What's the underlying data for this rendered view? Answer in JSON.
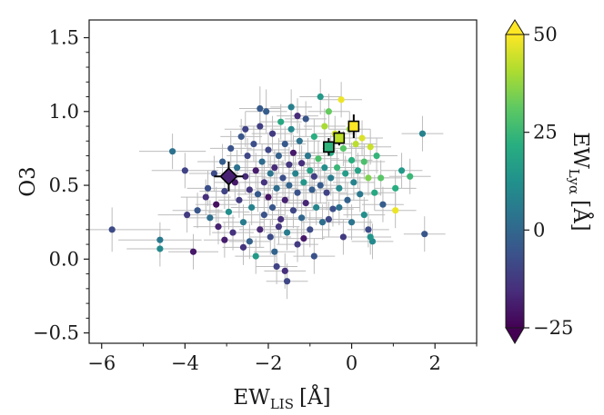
{
  "chart_data": {
    "type": "scatter",
    "xlabel": "EW",
    "xlabel_sub": "LIS",
    "xlabel_unit": "[Å]",
    "ylabel": "O3",
    "xlim": [
      -6.3,
      3.0
    ],
    "ylim": [
      -0.57,
      1.62
    ],
    "xticks": [
      -6,
      -4,
      -2,
      0,
      2
    ],
    "xtick_labels": [
      "−6",
      "−4",
      "−2",
      "0",
      "2"
    ],
    "yticks": [
      -0.5,
      0.0,
      0.5,
      1.0,
      1.5
    ],
    "ytick_labels": [
      "−0.5",
      "0.0",
      "0.5",
      "1.0",
      "1.5"
    ],
    "colorbar": {
      "label": "EW",
      "label_sub": "Lyα",
      "label_unit": "[Å]",
      "range": [
        -25,
        50
      ],
      "ticks": [
        -25,
        0,
        25,
        50
      ],
      "tick_labels": [
        "−25",
        "0",
        "25",
        "50"
      ],
      "colormap": "viridis",
      "extend": "both"
    },
    "error_bar_color": "#bdbdbd",
    "highlight_points": [
      {
        "marker": "diamond",
        "x": -2.95,
        "y": 0.56,
        "xerr": 0.35,
        "yerr": 0.1,
        "color": "#482173"
      },
      {
        "marker": "square",
        "x": -0.55,
        "y": 0.76,
        "xerr": 0.1,
        "yerr": 0.06,
        "color": "#2fb47c"
      },
      {
        "marker": "square",
        "x": -0.3,
        "y": 0.82,
        "xerr": 0.08,
        "yerr": 0.05,
        "color": "#bddf26"
      },
      {
        "marker": "square",
        "x": 0.05,
        "y": 0.9,
        "xerr": 0.08,
        "yerr": 0.08,
        "color": "#fde725"
      }
    ],
    "points": [
      {
        "x": -5.75,
        "y": 0.2,
        "c": -8,
        "xerr": 1.4,
        "yerr": 0.15
      },
      {
        "x": -4.6,
        "y": 0.13,
        "c": 5,
        "xerr": 1.0,
        "yerr": 0.12
      },
      {
        "x": -4.6,
        "y": 0.07,
        "c": 10,
        "xerr": 0.8,
        "yerr": 0.12
      },
      {
        "x": -4.3,
        "y": 0.73,
        "c": 3,
        "xerr": 0.8,
        "yerr": 0.12
      },
      {
        "x": -4.0,
        "y": 0.6,
        "c": -10,
        "xerr": 0.8,
        "yerr": 0.12
      },
      {
        "x": -3.95,
        "y": 0.3,
        "c": -12,
        "xerr": 0.7,
        "yerr": 0.12
      },
      {
        "x": -3.8,
        "y": 0.05,
        "c": -20,
        "xerr": 0.6,
        "yerr": 0.12
      },
      {
        "x": -3.7,
        "y": 0.33,
        "c": -5,
        "xerr": 0.6,
        "yerr": 0.12
      },
      {
        "x": -3.5,
        "y": 0.42,
        "c": -15,
        "xerr": 0.6,
        "yerr": 0.12
      },
      {
        "x": -3.4,
        "y": 0.28,
        "c": 2,
        "xerr": 0.6,
        "yerr": 0.12
      },
      {
        "x": -3.3,
        "y": 0.58,
        "c": -8,
        "xerr": 0.6,
        "yerr": 0.12
      },
      {
        "x": -3.2,
        "y": 0.22,
        "c": -18,
        "xerr": 0.6,
        "yerr": 0.12
      },
      {
        "x": -3.1,
        "y": 0.66,
        "c": -3,
        "xerr": 0.6,
        "yerr": 0.12
      },
      {
        "x": -3.05,
        "y": 0.46,
        "c": -10,
        "xerr": 0.6,
        "yerr": 0.12
      },
      {
        "x": -2.95,
        "y": 0.32,
        "c": 12,
        "xerr": 0.5,
        "yerr": 0.12
      },
      {
        "x": -2.9,
        "y": 0.75,
        "c": -6,
        "xerr": 0.5,
        "yerr": 0.12
      },
      {
        "x": -2.85,
        "y": 0.18,
        "c": -14,
        "xerr": 0.5,
        "yerr": 0.12
      },
      {
        "x": -2.8,
        "y": 0.52,
        "c": -20,
        "xerr": 0.5,
        "yerr": 0.12
      },
      {
        "x": -2.75,
        "y": 0.62,
        "c": 3,
        "xerr": 0.5,
        "yerr": 0.12
      },
      {
        "x": -2.7,
        "y": 0.4,
        "c": -12,
        "xerr": 0.5,
        "yerr": 0.12
      },
      {
        "x": -2.65,
        "y": 0.83,
        "c": -5,
        "xerr": 0.5,
        "yerr": 0.12
      },
      {
        "x": -2.6,
        "y": 0.25,
        "c": 6,
        "xerr": 0.5,
        "yerr": 0.12
      },
      {
        "x": -2.55,
        "y": 0.56,
        "c": -16,
        "xerr": 0.5,
        "yerr": 0.12
      },
      {
        "x": -2.5,
        "y": 0.7,
        "c": -9,
        "xerr": 0.5,
        "yerr": 0.12
      },
      {
        "x": -2.45,
        "y": 0.12,
        "c": -2,
        "xerr": 0.5,
        "yerr": 0.12
      },
      {
        "x": -2.45,
        "y": 0.47,
        "c": -13,
        "xerr": 0.5,
        "yerr": 0.12
      },
      {
        "x": -2.4,
        "y": 0.35,
        "c": 8,
        "xerr": 0.5,
        "yerr": 0.12
      },
      {
        "x": -2.35,
        "y": 0.78,
        "c": -7,
        "xerr": 0.5,
        "yerr": 0.12
      },
      {
        "x": -2.3,
        "y": 0.6,
        "c": -19,
        "xerr": 0.5,
        "yerr": 0.12
      },
      {
        "x": -2.3,
        "y": 0.02,
        "c": 15,
        "xerr": 0.5,
        "yerr": 0.12
      },
      {
        "x": -2.25,
        "y": 0.44,
        "c": -4,
        "xerr": 0.5,
        "yerr": 0.12
      },
      {
        "x": -2.2,
        "y": 0.9,
        "c": -11,
        "xerr": 0.5,
        "yerr": 0.12
      },
      {
        "x": -2.2,
        "y": 0.2,
        "c": -17,
        "xerr": 0.5,
        "yerr": 0.12
      },
      {
        "x": -2.15,
        "y": 0.66,
        "c": 1,
        "xerr": 0.5,
        "yerr": 0.12
      },
      {
        "x": -2.1,
        "y": 0.52,
        "c": -14,
        "xerr": 0.5,
        "yerr": 0.12
      },
      {
        "x": -2.1,
        "y": 0.3,
        "c": -6,
        "xerr": 0.5,
        "yerr": 0.12
      },
      {
        "x": -2.05,
        "y": 1.0,
        "c": -3,
        "xerr": 0.5,
        "yerr": 0.15
      },
      {
        "x": -2.0,
        "y": 0.74,
        "c": -9,
        "xerr": 0.5,
        "yerr": 0.12
      },
      {
        "x": -2.0,
        "y": 0.42,
        "c": -21,
        "xerr": 0.5,
        "yerr": 0.12
      },
      {
        "x": -1.95,
        "y": 0.15,
        "c": -8,
        "xerr": 0.5,
        "yerr": 0.12
      },
      {
        "x": -1.95,
        "y": 0.58,
        "c": 4,
        "xerr": 0.5,
        "yerr": 0.12
      },
      {
        "x": -1.9,
        "y": 0.85,
        "c": -12,
        "xerr": 0.5,
        "yerr": 0.12
      },
      {
        "x": -1.9,
        "y": 0.35,
        "c": -5,
        "xerr": 0.5,
        "yerr": 0.12
      },
      {
        "x": -1.85,
        "y": 0.62,
        "c": -16,
        "xerr": 0.5,
        "yerr": 0.12
      },
      {
        "x": -1.8,
        "y": 0.48,
        "c": 2,
        "xerr": 0.5,
        "yerr": 0.12
      },
      {
        "x": -1.8,
        "y": -0.05,
        "c": -10,
        "xerr": 0.5,
        "yerr": 0.12
      },
      {
        "x": -1.75,
        "y": 0.7,
        "c": -2,
        "xerr": 0.5,
        "yerr": 0.12
      },
      {
        "x": -1.7,
        "y": 0.27,
        "c": -15,
        "xerr": 0.5,
        "yerr": 0.12
      },
      {
        "x": -1.7,
        "y": 0.93,
        "c": 20,
        "xerr": 0.5,
        "yerr": 0.12
      },
      {
        "x": -1.65,
        "y": 0.55,
        "c": -7,
        "xerr": 0.5,
        "yerr": 0.12
      },
      {
        "x": -1.6,
        "y": 0.4,
        "c": -18,
        "xerr": 0.5,
        "yerr": 0.12
      },
      {
        "x": -1.6,
        "y": 0.78,
        "c": -4,
        "xerr": 0.5,
        "yerr": 0.12
      },
      {
        "x": -1.55,
        "y": 0.18,
        "c": 6,
        "xerr": 0.5,
        "yerr": 0.12
      },
      {
        "x": -1.5,
        "y": 0.64,
        "c": -13,
        "xerr": 0.5,
        "yerr": 0.12
      },
      {
        "x": -1.5,
        "y": 0.5,
        "c": -1,
        "xerr": 0.5,
        "yerr": 0.12
      },
      {
        "x": -1.45,
        "y": 0.88,
        "c": 10,
        "xerr": 0.5,
        "yerr": 0.12
      },
      {
        "x": -1.4,
        "y": 0.33,
        "c": -9,
        "xerr": 0.5,
        "yerr": 0.12
      },
      {
        "x": -1.4,
        "y": 0.72,
        "c": -20,
        "xerr": 0.5,
        "yerr": 0.12
      },
      {
        "x": -1.35,
        "y": 0.58,
        "c": 8,
        "xerr": 0.5,
        "yerr": 0.12
      },
      {
        "x": -1.3,
        "y": 0.45,
        "c": -6,
        "xerr": 0.5,
        "yerr": 0.12
      },
      {
        "x": -1.3,
        "y": 0.1,
        "c": -12,
        "xerr": 0.5,
        "yerr": 0.12
      },
      {
        "x": -1.25,
        "y": 0.8,
        "c": 3,
        "xerr": 0.5,
        "yerr": 0.12
      },
      {
        "x": -1.2,
        "y": 0.65,
        "c": -15,
        "xerr": 0.5,
        "yerr": 0.12
      },
      {
        "x": -1.2,
        "y": 0.28,
        "c": 0,
        "xerr": 0.5,
        "yerr": 0.12
      },
      {
        "x": -1.15,
        "y": 0.52,
        "c": 14,
        "xerr": 0.5,
        "yerr": 0.12
      },
      {
        "x": -1.1,
        "y": 0.95,
        "c": -5,
        "xerr": 0.5,
        "yerr": 0.12
      },
      {
        "x": -1.1,
        "y": 0.38,
        "c": -17,
        "xerr": 0.5,
        "yerr": 0.12
      },
      {
        "x": -1.05,
        "y": 0.7,
        "c": 5,
        "xerr": 0.5,
        "yerr": 0.12
      },
      {
        "x": -1.0,
        "y": 0.6,
        "c": 18,
        "xerr": 0.5,
        "yerr": 0.12
      },
      {
        "x": -1.0,
        "y": 0.2,
        "c": -8,
        "xerr": 0.5,
        "yerr": 0.12
      },
      {
        "x": -0.95,
        "y": 0.47,
        "c": -3,
        "xerr": 0.5,
        "yerr": 0.12
      },
      {
        "x": -0.9,
        "y": 0.83,
        "c": 22,
        "xerr": 0.5,
        "yerr": 0.12
      },
      {
        "x": -0.9,
        "y": 0.56,
        "c": -11,
        "xerr": 0.5,
        "yerr": 0.12
      },
      {
        "x": -0.85,
        "y": 0.35,
        "c": 9,
        "xerr": 0.5,
        "yerr": 0.12
      },
      {
        "x": -0.8,
        "y": 0.68,
        "c": 28,
        "xerr": 0.5,
        "yerr": 0.12
      },
      {
        "x": -0.75,
        "y": 1.1,
        "c": 15,
        "xerr": 0.5,
        "yerr": 0.12
      },
      {
        "x": -0.75,
        "y": 0.5,
        "c": -4,
        "xerr": 0.5,
        "yerr": 0.12
      },
      {
        "x": -0.7,
        "y": 0.25,
        "c": 2,
        "xerr": 0.5,
        "yerr": 0.12
      },
      {
        "x": -0.65,
        "y": 0.9,
        "c": 40,
        "xerr": 0.5,
        "yerr": 0.12
      },
      {
        "x": -0.65,
        "y": 0.62,
        "c": 12,
        "xerr": 0.5,
        "yerr": 0.12
      },
      {
        "x": -0.6,
        "y": 0.45,
        "c": -10,
        "xerr": 0.5,
        "yerr": 0.12
      },
      {
        "x": -0.55,
        "y": 1.0,
        "c": 32,
        "xerr": 0.5,
        "yerr": 0.12
      },
      {
        "x": -0.5,
        "y": 0.72,
        "c": 20,
        "xerr": 0.5,
        "yerr": 0.12
      },
      {
        "x": -0.5,
        "y": 0.55,
        "c": 6,
        "xerr": 0.5,
        "yerr": 0.12
      },
      {
        "x": -0.45,
        "y": 0.34,
        "c": -7,
        "xerr": 0.5,
        "yerr": 0.12
      },
      {
        "x": -0.4,
        "y": 0.85,
        "c": 45,
        "xerr": 0.5,
        "yerr": 0.12
      },
      {
        "x": -0.35,
        "y": 0.62,
        "c": 25,
        "xerr": 0.5,
        "yerr": 0.12
      },
      {
        "x": -0.3,
        "y": 0.48,
        "c": 10,
        "xerr": 0.5,
        "yerr": 0.12
      },
      {
        "x": -0.25,
        "y": 1.08,
        "c": 48,
        "xerr": 0.5,
        "yerr": 0.12
      },
      {
        "x": -0.2,
        "y": 0.75,
        "c": 30,
        "xerr": 0.5,
        "yerr": 0.12
      },
      {
        "x": -0.15,
        "y": 0.58,
        "c": 16,
        "xerr": 0.5,
        "yerr": 0.12
      },
      {
        "x": -0.1,
        "y": 0.4,
        "c": -2,
        "xerr": 0.5,
        "yerr": 0.12
      },
      {
        "x": -0.05,
        "y": 0.88,
        "c": 38,
        "xerr": 0.5,
        "yerr": 0.12
      },
      {
        "x": 0.0,
        "y": 0.67,
        "c": 22,
        "xerr": 0.5,
        "yerr": 0.12
      },
      {
        "x": 0.05,
        "y": 0.52,
        "c": 8,
        "xerr": 0.5,
        "yerr": 0.12
      },
      {
        "x": 0.1,
        "y": 0.78,
        "c": 42,
        "xerr": 0.5,
        "yerr": 0.12
      },
      {
        "x": 0.15,
        "y": 0.6,
        "c": 18,
        "xerr": 0.5,
        "yerr": 0.12
      },
      {
        "x": 0.2,
        "y": 0.44,
        "c": 5,
        "xerr": 0.5,
        "yerr": 0.12
      },
      {
        "x": 0.25,
        "y": 0.82,
        "c": 46,
        "xerr": 0.5,
        "yerr": 0.12
      },
      {
        "x": 0.3,
        "y": 0.3,
        "c": 12,
        "xerr": 0.5,
        "yerr": 0.12
      },
      {
        "x": 0.3,
        "y": 0.66,
        "c": 28,
        "xerr": 0.5,
        "yerr": 0.12
      },
      {
        "x": 0.4,
        "y": 0.55,
        "c": 35,
        "xerr": 0.5,
        "yerr": 0.12
      },
      {
        "x": 0.45,
        "y": 0.76,
        "c": 44,
        "xerr": 0.5,
        "yerr": 0.12
      },
      {
        "x": 0.5,
        "y": 0.12,
        "c": 10,
        "xerr": 0.5,
        "yerr": 0.12
      },
      {
        "x": 0.55,
        "y": 0.45,
        "c": 20,
        "xerr": 0.5,
        "yerr": 0.12
      },
      {
        "x": 0.6,
        "y": 0.7,
        "c": 24,
        "xerr": 0.5,
        "yerr": 0.12
      },
      {
        "x": 0.7,
        "y": 0.55,
        "c": 30,
        "xerr": 0.5,
        "yerr": 0.12
      },
      {
        "x": 0.75,
        "y": 0.37,
        "c": -3,
        "xerr": 0.5,
        "yerr": 0.12
      },
      {
        "x": 1.05,
        "y": 0.48,
        "c": 22,
        "xerr": 0.5,
        "yerr": 0.12
      },
      {
        "x": 1.05,
        "y": 0.33,
        "c": 48,
        "xerr": 0.5,
        "yerr": 0.12
      },
      {
        "x": 1.2,
        "y": 0.6,
        "c": 15,
        "xerr": 0.5,
        "yerr": 0.12
      },
      {
        "x": 1.4,
        "y": 0.56,
        "c": 25,
        "xerr": 0.5,
        "yerr": 0.12
      },
      {
        "x": 1.7,
        "y": 0.85,
        "c": 8,
        "xerr": 0.5,
        "yerr": 0.12
      },
      {
        "x": 1.75,
        "y": 0.17,
        "c": -5,
        "xerr": 0.5,
        "yerr": 0.12
      },
      {
        "x": 0.45,
        "y": 0.15,
        "c": 14,
        "xerr": 0.5,
        "yerr": 0.12
      },
      {
        "x": 0.4,
        "y": 0.2,
        "c": -8,
        "xerr": 0.5,
        "yerr": 0.12
      },
      {
        "x": 0.0,
        "y": 0.25,
        "c": 4,
        "xerr": 0.5,
        "yerr": 0.12
      },
      {
        "x": -0.2,
        "y": 0.15,
        "c": -12,
        "xerr": 0.5,
        "yerr": 0.12
      },
      {
        "x": -0.9,
        "y": 0.02,
        "c": -6,
        "xerr": 0.5,
        "yerr": 0.12
      },
      {
        "x": -1.6,
        "y": -0.08,
        "c": -15,
        "xerr": 0.5,
        "yerr": 0.12
      },
      {
        "x": -1.55,
        "y": -0.15,
        "c": -9,
        "xerr": 0.5,
        "yerr": 0.12
      },
      {
        "x": -1.85,
        "y": 0.05,
        "c": -1,
        "xerr": 0.5,
        "yerr": 0.12
      },
      {
        "x": -2.6,
        "y": 0.08,
        "c": -14,
        "xerr": 0.5,
        "yerr": 0.12
      },
      {
        "x": -3.05,
        "y": 0.13,
        "c": -19,
        "xerr": 0.5,
        "yerr": 0.12
      },
      {
        "x": -3.45,
        "y": 0.48,
        "c": -7,
        "xerr": 0.5,
        "yerr": 0.12
      },
      {
        "x": -3.25,
        "y": 0.37,
        "c": -22,
        "xerr": 0.5,
        "yerr": 0.12
      },
      {
        "x": -2.2,
        "y": 1.02,
        "c": -4,
        "xerr": 0.5,
        "yerr": 0.15
      },
      {
        "x": -1.3,
        "y": 0.97,
        "c": -16,
        "xerr": 0.5,
        "yerr": 0.12
      },
      {
        "x": -1.45,
        "y": 1.03,
        "c": 7,
        "xerr": 0.5,
        "yerr": 0.12
      },
      {
        "x": -2.55,
        "y": 0.88,
        "c": -10,
        "xerr": 0.5,
        "yerr": 0.12
      },
      {
        "x": -1.75,
        "y": 0.22,
        "c": -13,
        "xerr": 0.5,
        "yerr": 0.12
      },
      {
        "x": -1.15,
        "y": 0.14,
        "c": -20,
        "xerr": 0.5,
        "yerr": 0.12
      },
      {
        "x": -0.55,
        "y": 0.27,
        "c": -9,
        "xerr": 0.5,
        "yerr": 0.12
      },
      {
        "x": -0.3,
        "y": 0.35,
        "c": 3,
        "xerr": 0.5,
        "yerr": 0.12
      }
    ]
  }
}
